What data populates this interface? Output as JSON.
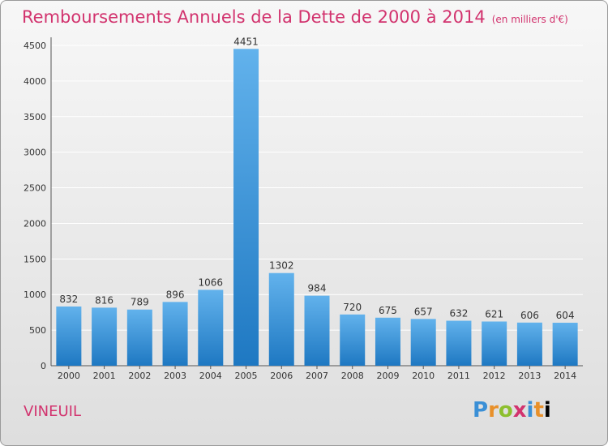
{
  "header": {
    "title": "Remboursements Annuels de la Dette de 2000 à 2014",
    "subtitle": "(en milliers d'€)"
  },
  "footer": {
    "commune": "VINEUIL",
    "logo_letters": [
      "P",
      "r",
      "o",
      "x",
      "i",
      "t",
      "i"
    ]
  },
  "colors": {
    "title": "#d2336e",
    "bar_light": "#62b2ec",
    "bar_dark": "#1e78c2",
    "grid": "#ffffff"
  },
  "chart_data": {
    "type": "bar",
    "categories": [
      "2000",
      "2001",
      "2002",
      "2003",
      "2004",
      "2005",
      "2006",
      "2007",
      "2008",
      "2009",
      "2010",
      "2011",
      "2012",
      "2013",
      "2014"
    ],
    "values": [
      832,
      816,
      789,
      896,
      1066,
      4451,
      1302,
      984,
      720,
      675,
      657,
      632,
      621,
      606,
      604
    ],
    "ylim": [
      0,
      4500
    ],
    "yticks": [
      0,
      500,
      1000,
      1500,
      2000,
      2500,
      3000,
      3500,
      4000,
      4500
    ],
    "grid": true,
    "data_labels": true
  }
}
